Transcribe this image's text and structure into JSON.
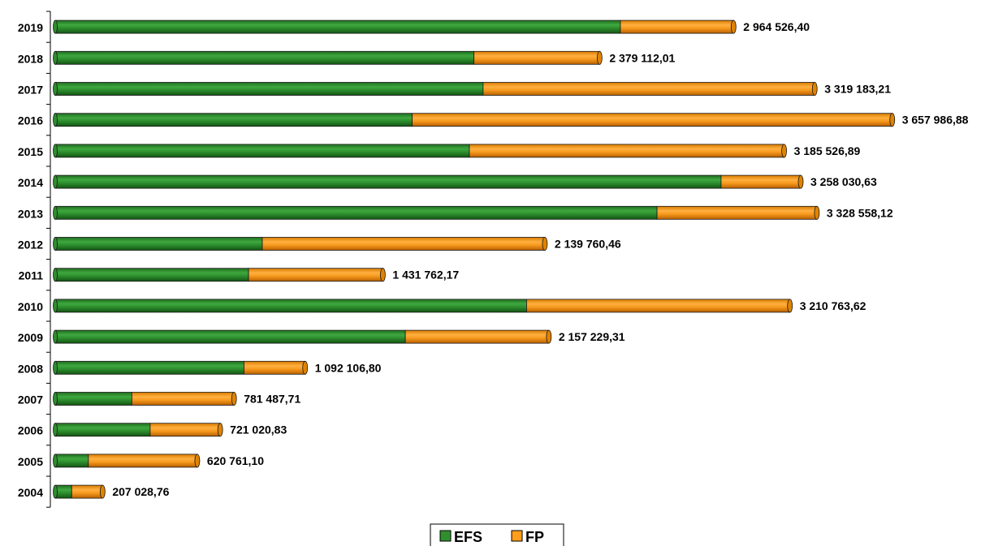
{
  "chart_data": {
    "type": "bar",
    "orientation": "horizontal",
    "stacked": true,
    "categories": [
      "2019",
      "2018",
      "2017",
      "2016",
      "2015",
      "2014",
      "2013",
      "2012",
      "2011",
      "2010",
      "2009",
      "2008",
      "2007",
      "2006",
      "2005",
      "2004"
    ],
    "series": [
      {
        "name": "EFS",
        "color": "#2f8f2f",
        "values": [
          2470000,
          1830000,
          1870000,
          1560000,
          1810000,
          2910000,
          2630000,
          905000,
          845000,
          2060000,
          1530000,
          825000,
          335000,
          415000,
          145000,
          72000
        ]
      },
      {
        "name": "FP",
        "color": "#ff9e1b",
        "values": [
          494526.4,
          549112.01,
          1449183.21,
          2097986.88,
          1375526.89,
          348030.63,
          698558.12,
          1234760.46,
          586762.17,
          1150763.62,
          627229.31,
          267106.8,
          446487.71,
          306020.83,
          475761.1,
          135028.76
        ]
      }
    ],
    "totals": [
      "2 964 526,40",
      "2 379 112,01",
      "3 319 183,21",
      "3 657 986,88",
      "3 185 526,89",
      "3 258 030,63",
      "3 328 558,12",
      "2 139 760,46",
      "1 431 762,17",
      "3 210 763,62",
      "2 157 229,31",
      "1 092 106,80",
      "781 487,71",
      "721 020,83",
      "620 761,10",
      "207 028,76"
    ],
    "xlim": [
      0,
      3620000
    ],
    "grid": false,
    "legend": {
      "placement": "bottom-center",
      "entries": [
        "EFS",
        "FP"
      ]
    },
    "title": "",
    "xlabel": "",
    "ylabel": ""
  }
}
